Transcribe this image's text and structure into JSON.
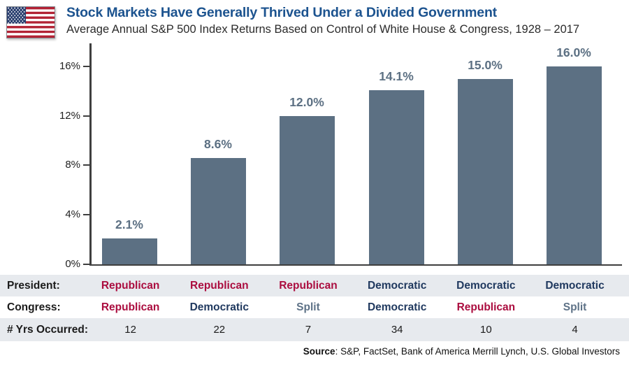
{
  "header": {
    "title": "Stock Markets Have Generally Thrived Under a Divided Government",
    "subtitle": "Average Annual S&P 500 Index Returns Based on Control of White House & Congress, 1928 – 2017",
    "flag_icon": "us-flag-icon"
  },
  "chart_data": {
    "type": "bar",
    "title": "Stock Markets Have Generally Thrived Under a Divided Government",
    "subtitle": "Average Annual S&P 500 Index Returns Based on Control of White House & Congress, 1928 – 2017",
    "categories": [
      "Republican President & Republican Congress",
      "Republican President & Democratic Congress",
      "Republican President & Split Congress",
      "Democratic President & Democratic Congress",
      "Democratic President & Republican Congress",
      "Democratic President & Split Congress"
    ],
    "values": [
      2.1,
      8.6,
      12.0,
      14.1,
      15.0,
      16.0
    ],
    "value_labels": [
      "2.1%",
      "8.6%",
      "12.0%",
      "14.1%",
      "15.0%",
      "16.0%"
    ],
    "years_occurred": [
      12,
      22,
      7,
      34,
      10,
      4
    ],
    "xlabel": "",
    "ylabel": "",
    "ylim": [
      0,
      17.9
    ],
    "ytick_values": [
      0,
      4,
      8,
      12,
      16
    ],
    "ytick_labels": [
      "0%",
      "4%",
      "8%",
      "12%",
      "16%"
    ],
    "grid": false,
    "legend": "none",
    "bar_color": "#5c7083",
    "source": "S&P, FactSet, Bank of America Merrill Lynch, U.S. Global Investors"
  },
  "table": {
    "rows": [
      {
        "label": "President:",
        "cells": [
          {
            "text": "Republican",
            "party": "republican"
          },
          {
            "text": "Republican",
            "party": "republican"
          },
          {
            "text": "Republican",
            "party": "republican"
          },
          {
            "text": "Democratic",
            "party": "democratic"
          },
          {
            "text": "Democratic",
            "party": "democratic"
          },
          {
            "text": "Democratic",
            "party": "democratic"
          }
        ]
      },
      {
        "label": "Congress:",
        "cells": [
          {
            "text": "Republican",
            "party": "republican"
          },
          {
            "text": "Democratic",
            "party": "democratic"
          },
          {
            "text": "Split",
            "party": "split"
          },
          {
            "text": "Democratic",
            "party": "democratic"
          },
          {
            "text": "Republican",
            "party": "republican"
          },
          {
            "text": "Split",
            "party": "split"
          }
        ]
      },
      {
        "label": "# Yrs Occurred:",
        "cells": [
          {
            "text": "12",
            "party": "plain"
          },
          {
            "text": "22",
            "party": "plain"
          },
          {
            "text": "7",
            "party": "plain"
          },
          {
            "text": "34",
            "party": "plain"
          },
          {
            "text": "10",
            "party": "plain"
          },
          {
            "text": "4",
            "party": "plain"
          }
        ]
      }
    ]
  },
  "footer": {
    "source_label": "Source",
    "source_rest": ": S&P, FactSet, Bank of America Merrill Lynch, U.S. Global Investors"
  },
  "colors": {
    "republican": "#ab0d3f",
    "democratic": "#20395f",
    "split": "#5e7287",
    "plain": "#1b1b1b",
    "bar": "#5c7083",
    "title": "#1c538f",
    "row_alt_bg": "#e7eaee",
    "axis": "#3f3f3f",
    "flag_red": "#b22234",
    "flag_blue": "#2a3f6f"
  }
}
